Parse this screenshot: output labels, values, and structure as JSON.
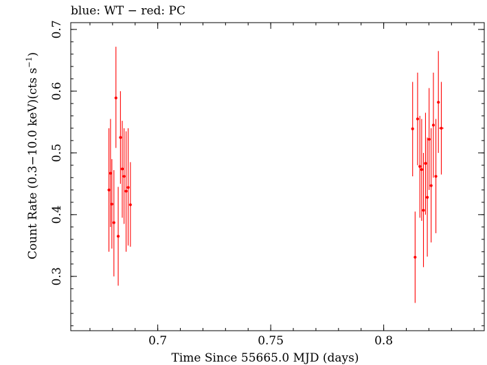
{
  "chart_data": {
    "type": "scatter",
    "title": "blue: WT − red: PC",
    "xlabel": "Time Since 55665.0 MJD (days)",
    "ylabel_parts": [
      "Count Rate (0.3−10.0 keV)(cts s",
      "−1",
      ")"
    ],
    "xlim": [
      0.6615,
      0.8445
    ],
    "ylim": [
      0.212,
      0.711
    ],
    "xticks": [
      {
        "value": 0.7,
        "label": "0.7"
      },
      {
        "value": 0.75,
        "label": "0.75"
      },
      {
        "value": 0.8,
        "label": "0.8"
      }
    ],
    "yticks": [
      {
        "value": 0.3,
        "label": "0.3"
      },
      {
        "value": 0.4,
        "label": "0.4"
      },
      {
        "value": 0.5,
        "label": "0.5"
      },
      {
        "value": 0.6,
        "label": "0.6"
      },
      {
        "value": 0.7,
        "label": "0.7"
      }
    ],
    "x_minor_step": 0.01,
    "y_minor_step": 0.02,
    "grid": false,
    "series": [
      {
        "color": "#ff0000",
        "points": [
          {
            "x": 0.6784,
            "y": 0.44,
            "ylo": 0.34,
            "yhi": 0.54,
            "xerr": 0.0004
          },
          {
            "x": 0.6791,
            "y": 0.467,
            "ylo": 0.38,
            "yhi": 0.555,
            "xerr": 0.0004
          },
          {
            "x": 0.6797,
            "y": 0.417,
            "ylo": 0.345,
            "yhi": 0.49,
            "xerr": 0.0004
          },
          {
            "x": 0.6806,
            "y": 0.387,
            "ylo": 0.3,
            "yhi": 0.472,
            "xerr": 0.0004
          },
          {
            "x": 0.6815,
            "y": 0.589,
            "ylo": 0.508,
            "yhi": 0.672,
            "xerr": 0.0004
          },
          {
            "x": 0.6825,
            "y": 0.365,
            "ylo": 0.285,
            "yhi": 0.445,
            "xerr": 0.0004
          },
          {
            "x": 0.6835,
            "y": 0.525,
            "ylo": 0.45,
            "yhi": 0.6,
            "xerr": 0.0004
          },
          {
            "x": 0.6843,
            "y": 0.474,
            "ylo": 0.395,
            "yhi": 0.552,
            "xerr": 0.0004
          },
          {
            "x": 0.6851,
            "y": 0.462,
            "ylo": 0.385,
            "yhi": 0.54,
            "xerr": 0.0004
          },
          {
            "x": 0.686,
            "y": 0.438,
            "ylo": 0.34,
            "yhi": 0.535,
            "xerr": 0.0004
          },
          {
            "x": 0.6869,
            "y": 0.444,
            "ylo": 0.35,
            "yhi": 0.54,
            "xerr": 0.0004
          },
          {
            "x": 0.6879,
            "y": 0.416,
            "ylo": 0.348,
            "yhi": 0.485,
            "xerr": 0.0004
          },
          {
            "x": 0.8128,
            "y": 0.539,
            "ylo": 0.462,
            "yhi": 0.615,
            "xerr": 0.0004
          },
          {
            "x": 0.8139,
            "y": 0.331,
            "ylo": 0.257,
            "yhi": 0.405,
            "xerr": 0.0004
          },
          {
            "x": 0.815,
            "y": 0.555,
            "ylo": 0.48,
            "yhi": 0.63,
            "xerr": 0.0004
          },
          {
            "x": 0.816,
            "y": 0.478,
            "ylo": 0.395,
            "yhi": 0.56,
            "xerr": 0.0004
          },
          {
            "x": 0.8168,
            "y": 0.473,
            "ylo": 0.39,
            "yhi": 0.555,
            "xerr": 0.0004
          },
          {
            "x": 0.8176,
            "y": 0.407,
            "ylo": 0.315,
            "yhi": 0.5,
            "xerr": 0.0004
          },
          {
            "x": 0.8185,
            "y": 0.483,
            "ylo": 0.4,
            "yhi": 0.565,
            "xerr": 0.0004
          },
          {
            "x": 0.8193,
            "y": 0.428,
            "ylo": 0.332,
            "yhi": 0.525,
            "xerr": 0.0004
          },
          {
            "x": 0.8201,
            "y": 0.522,
            "ylo": 0.44,
            "yhi": 0.605,
            "xerr": 0.0004
          },
          {
            "x": 0.821,
            "y": 0.447,
            "ylo": 0.355,
            "yhi": 0.54,
            "xerr": 0.0004
          },
          {
            "x": 0.822,
            "y": 0.545,
            "ylo": 0.46,
            "yhi": 0.63,
            "xerr": 0.0004
          },
          {
            "x": 0.8231,
            "y": 0.462,
            "ylo": 0.37,
            "yhi": 0.555,
            "xerr": 0.0004
          },
          {
            "x": 0.8242,
            "y": 0.582,
            "ylo": 0.5,
            "yhi": 0.665,
            "xerr": 0.0004
          },
          {
            "x": 0.8255,
            "y": 0.54,
            "ylo": 0.465,
            "yhi": 0.615,
            "xerr": 0.001
          }
        ]
      }
    ]
  }
}
